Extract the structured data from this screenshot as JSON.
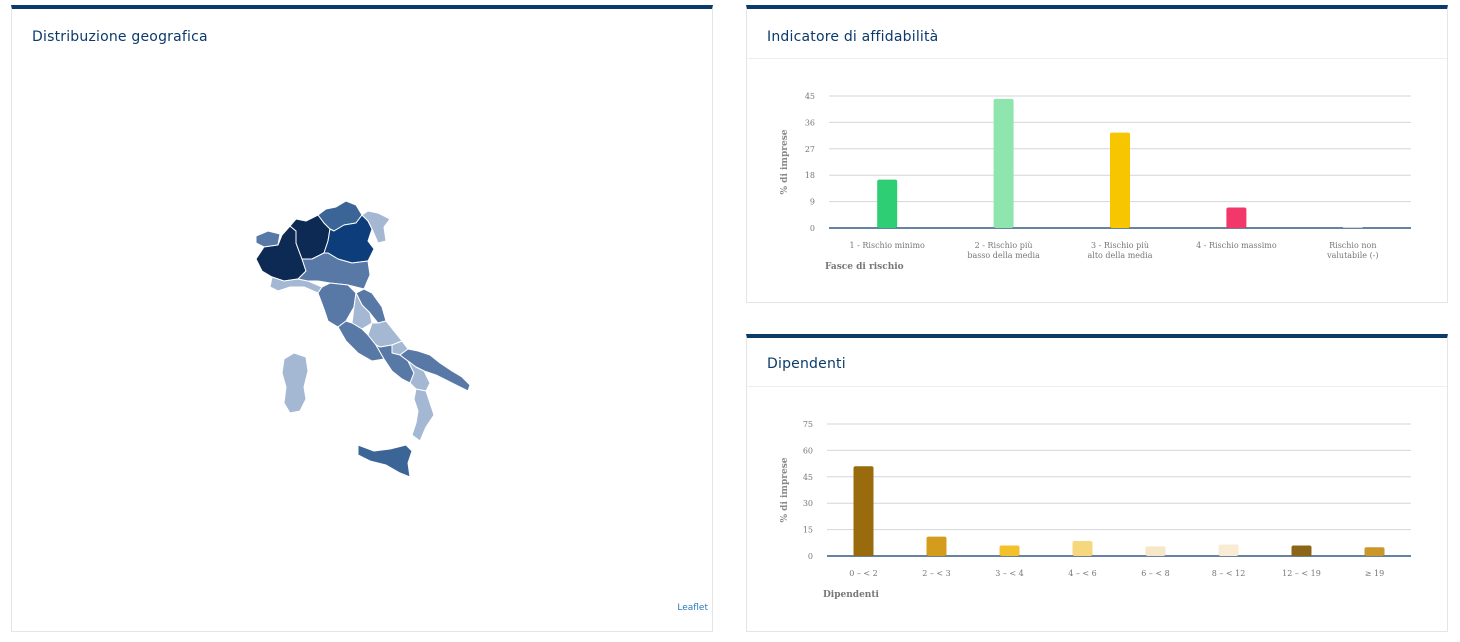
{
  "map": {
    "title": "Distribuzione geografica",
    "attribution": "Leaflet",
    "colors": [
      "#0d2a55",
      "#0d3d7a",
      "#3a6596",
      "#5878a6",
      "#7391bb",
      "#a5b8d3"
    ]
  },
  "affidabilita": {
    "title": "Indicatore di affidabilità",
    "chart_data": {
      "type": "bar",
      "categories": [
        [
          "1 - Rischio minimo"
        ],
        [
          "2 - Rischio più",
          "basso della media"
        ],
        [
          "3 - Rischio più",
          "alto della media"
        ],
        [
          "4 - Rischio massimo"
        ],
        [
          "Rischio non",
          "valutabile (-)"
        ]
      ],
      "values": [
        16.5,
        44,
        32.5,
        7,
        0.2
      ],
      "colors": [
        "#2dce74",
        "#8fe5ae",
        "#f7c600",
        "#f2386b",
        "#d8d8d8"
      ],
      "ylim": [
        0,
        45
      ],
      "yticks": [
        0,
        9,
        18,
        27,
        36,
        45
      ],
      "ylabel": "% di imprese",
      "xlabel": "Fasce di rischio",
      "grid": true
    }
  },
  "dipendenti": {
    "title": "Dipendenti",
    "chart_data": {
      "type": "bar",
      "categories": [
        [
          "0 – < 2"
        ],
        [
          "2 – < 3"
        ],
        [
          "3 – < 4"
        ],
        [
          "4 – < 6"
        ],
        [
          "6 – < 8"
        ],
        [
          "8 – < 12"
        ],
        [
          "12 – < 19"
        ],
        [
          "≥ 19"
        ]
      ],
      "values": [
        51,
        11,
        6,
        8.5,
        5.5,
        6.5,
        6,
        5
      ],
      "colors": [
        "#9a6b0c",
        "#d39c1c",
        "#f2c12d",
        "#f7d77d",
        "#f6e7c8",
        "#f8ecd5",
        "#8d6518",
        "#c9972b"
      ],
      "ylim": [
        0,
        75
      ],
      "yticks": [
        0,
        15,
        30,
        45,
        60,
        75
      ],
      "ylabel": "% di imprese",
      "xlabel": "Dipendenti",
      "grid": true
    }
  }
}
